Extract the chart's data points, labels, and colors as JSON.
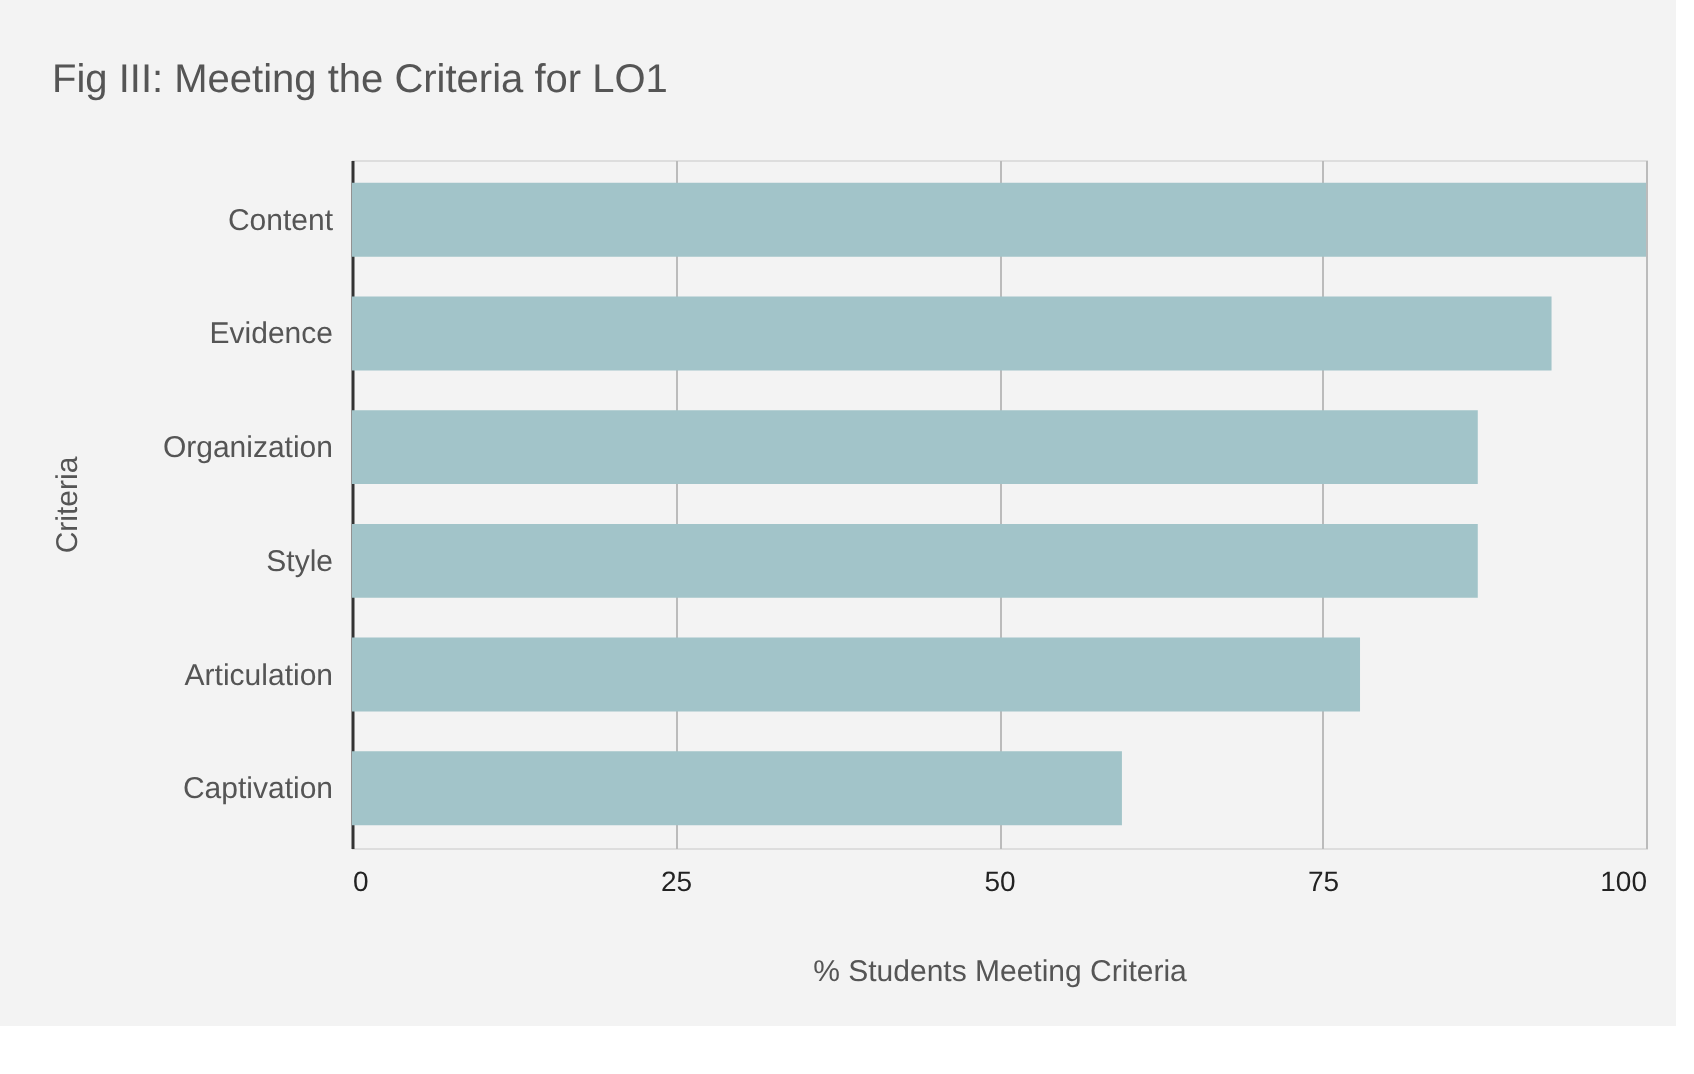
{
  "chart_data": {
    "type": "bar",
    "orientation": "horizontal",
    "title": "Fig III: Meeting the Criteria for LO1",
    "xlabel": "%  Students Meeting Criteria",
    "ylabel": "Criteria",
    "categories": [
      "Content",
      "Evidence",
      "Organization",
      "Style",
      "Articulation",
      "Captivation"
    ],
    "values": [
      100,
      92.7,
      87,
      87,
      77.9,
      59.5
    ],
    "color": "#a2c4c9",
    "xlim": [
      0,
      100
    ],
    "xticks": [
      0,
      25,
      50,
      75,
      100
    ],
    "grid": "x"
  }
}
